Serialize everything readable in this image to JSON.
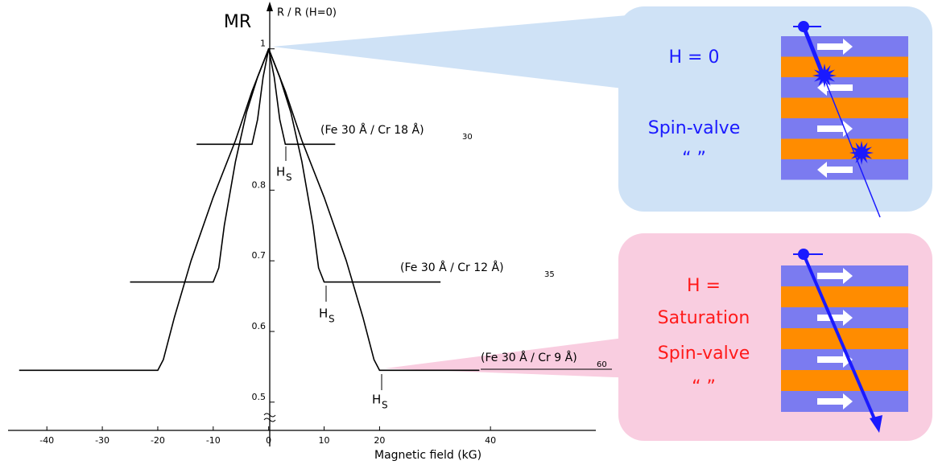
{
  "chart_data": {
    "type": "line",
    "title": "MR",
    "y_label": "R / R (H=0)",
    "x_label": "Magnetic field  (kG)",
    "xlim": [
      -47,
      59
    ],
    "ylim": [
      0.46,
      1.06
    ],
    "xticks": [
      -40,
      -30,
      -20,
      -10,
      0,
      10,
      20,
      40
    ],
    "yticks": [
      0.5,
      0.6,
      0.7,
      0.8,
      1
    ],
    "series": [
      {
        "name": "(Fe  30 Å / Cr 18 Å)",
        "name_sub": "30",
        "color": "#000000",
        "x": [
          -13,
          -3,
          -2,
          -1,
          0,
          1,
          2,
          3,
          12
        ],
        "values": [
          0.865,
          0.865,
          0.9,
          0.96,
          1,
          0.96,
          0.9,
          0.865,
          0.865
        ]
      },
      {
        "name": "(Fe  30 Å / Cr  12 Å)",
        "name_sub": "35",
        "color": "#000000",
        "x": [
          -25,
          -10,
          -9,
          -8,
          -6,
          -4,
          -2,
          0,
          2,
          4,
          6,
          8,
          9,
          10,
          31
        ],
        "values": [
          0.67,
          0.67,
          0.69,
          0.75,
          0.84,
          0.91,
          0.96,
          1,
          0.96,
          0.91,
          0.84,
          0.75,
          0.69,
          0.67,
          0.67
        ]
      },
      {
        "name": "(Fe  30 Å / Cr 9 Å)",
        "name_sub": "60",
        "color": "#000000",
        "x": [
          -45,
          -20,
          -19,
          -17,
          -14,
          -10,
          -6,
          -3,
          0,
          3,
          6,
          10,
          14,
          17,
          19,
          20,
          38
        ],
        "values": [
          0.545,
          0.545,
          0.56,
          0.62,
          0.7,
          0.79,
          0.87,
          0.94,
          1,
          0.94,
          0.87,
          0.79,
          0.7,
          0.62,
          0.56,
          0.545,
          0.545
        ]
      }
    ],
    "annotations": [
      "H",
      "S"
    ],
    "callouts": [
      {
        "lines": [
          "H = 0",
          "Spin-valve",
          "“        ”"
        ]
      },
      {
        "lines": [
          "H =",
          "Saturation",
          "Spin-valve",
          "“        ”"
        ]
      }
    ]
  }
}
